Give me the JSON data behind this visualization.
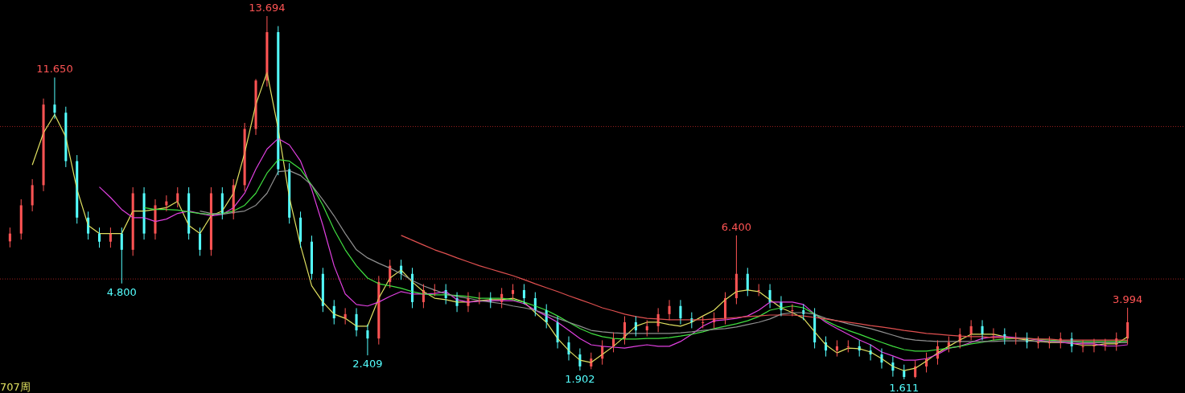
{
  "chart_data": {
    "type": "candlestick",
    "categories": [
      null,
      null,
      null,
      null,
      null,
      null,
      null,
      null,
      null,
      null,
      null,
      null,
      null,
      null,
      null,
      null,
      null,
      null,
      null,
      null,
      null,
      null,
      null,
      null,
      null,
      null,
      null,
      null,
      null,
      null,
      null,
      null,
      null,
      null,
      null,
      null,
      null,
      null,
      null,
      null,
      null,
      null,
      null,
      null,
      null,
      null,
      null,
      null,
      null,
      null,
      null,
      null,
      null,
      null,
      null,
      null,
      null,
      null,
      null,
      null,
      null,
      null,
      null,
      null,
      null,
      null,
      null,
      null,
      null,
      null,
      null,
      null,
      null,
      null,
      null,
      null,
      null,
      null,
      null,
      null,
      null,
      null,
      null,
      null,
      null,
      null,
      null,
      null,
      null,
      null,
      null,
      null,
      null,
      null,
      null,
      null,
      null,
      null,
      null,
      null,
      null
    ],
    "ohlc": [
      [
        6.2,
        6.66,
        6.0,
        6.46
      ],
      [
        6.46,
        7.6,
        6.26,
        7.4
      ],
      [
        7.4,
        8.27,
        7.2,
        8.07
      ],
      [
        8.07,
        10.95,
        7.87,
        10.75
      ],
      [
        10.75,
        11.65,
        10.28,
        10.48
      ],
      [
        10.48,
        10.68,
        8.67,
        8.87
      ],
      [
        8.87,
        9.07,
        6.79,
        6.99
      ],
      [
        6.99,
        7.19,
        6.26,
        6.46
      ],
      [
        6.46,
        6.66,
        5.99,
        6.19
      ],
      [
        6.19,
        6.66,
        5.99,
        6.46
      ],
      [
        6.46,
        6.66,
        4.8,
        5.92
      ],
      [
        5.92,
        8.0,
        5.72,
        7.8
      ],
      [
        7.8,
        8.0,
        6.26,
        6.46
      ],
      [
        6.46,
        7.6,
        6.26,
        7.4
      ],
      [
        7.4,
        7.73,
        7.2,
        7.53
      ],
      [
        7.53,
        8.0,
        7.33,
        7.8
      ],
      [
        7.8,
        8.0,
        6.26,
        6.46
      ],
      [
        6.46,
        6.66,
        5.72,
        5.92
      ],
      [
        5.92,
        8.0,
        5.72,
        7.8
      ],
      [
        7.8,
        8.0,
        6.93,
        7.13
      ],
      [
        7.13,
        8.27,
        6.93,
        8.07
      ],
      [
        8.07,
        10.14,
        7.87,
        9.94
      ],
      [
        9.94,
        11.6,
        9.74,
        11.55
      ],
      [
        11.55,
        13.694,
        11.35,
        13.16
      ],
      [
        13.16,
        13.36,
        8.4,
        8.6
      ],
      [
        8.6,
        8.8,
        6.79,
        6.99
      ],
      [
        6.99,
        7.19,
        5.99,
        6.19
      ],
      [
        6.19,
        6.39,
        4.92,
        5.12
      ],
      [
        5.12,
        5.32,
        3.85,
        4.05
      ],
      [
        4.05,
        4.25,
        3.44,
        3.64
      ],
      [
        3.64,
        3.98,
        3.44,
        3.78
      ],
      [
        3.78,
        3.98,
        3.04,
        3.24
      ],
      [
        3.24,
        3.44,
        2.409,
        2.97
      ],
      [
        2.97,
        5.05,
        2.77,
        4.85
      ],
      [
        4.85,
        5.59,
        4.65,
        5.39
      ],
      [
        5.39,
        5.59,
        4.92,
        5.12
      ],
      [
        5.12,
        5.32,
        3.98,
        4.18
      ],
      [
        4.18,
        4.78,
        3.98,
        4.58
      ],
      [
        4.58,
        4.78,
        4.38,
        4.58
      ],
      [
        4.58,
        4.78,
        4.11,
        4.31
      ],
      [
        4.31,
        4.51,
        3.85,
        4.05
      ],
      [
        4.05,
        4.51,
        3.85,
        4.31
      ],
      [
        4.31,
        4.51,
        4.11,
        4.31
      ],
      [
        4.31,
        4.51,
        3.98,
        4.18
      ],
      [
        4.18,
        4.65,
        3.98,
        4.45
      ],
      [
        4.45,
        4.78,
        4.25,
        4.58
      ],
      [
        4.58,
        4.78,
        4.11,
        4.31
      ],
      [
        4.31,
        4.51,
        3.71,
        3.91
      ],
      [
        3.91,
        4.11,
        3.31,
        3.51
      ],
      [
        3.51,
        3.71,
        2.64,
        2.84
      ],
      [
        2.84,
        3.04,
        2.24,
        2.44
      ],
      [
        2.44,
        2.64,
        1.902,
        2.04
      ],
      [
        2.04,
        2.5,
        1.95,
        2.3
      ],
      [
        2.3,
        2.91,
        2.1,
        2.71
      ],
      [
        2.71,
        3.17,
        2.51,
        2.97
      ],
      [
        2.97,
        3.71,
        2.77,
        3.51
      ],
      [
        3.51,
        3.71,
        3.04,
        3.24
      ],
      [
        3.24,
        3.58,
        3.04,
        3.38
      ],
      [
        3.38,
        3.98,
        3.18,
        3.78
      ],
      [
        3.78,
        4.25,
        3.58,
        4.05
      ],
      [
        4.05,
        4.25,
        3.44,
        3.64
      ],
      [
        3.64,
        3.84,
        3.31,
        3.51
      ],
      [
        3.51,
        3.71,
        3.31,
        3.51
      ],
      [
        3.51,
        3.84,
        3.31,
        3.64
      ],
      [
        3.64,
        4.51,
        3.44,
        4.31
      ],
      [
        4.31,
        6.4,
        4.11,
        5.12
      ],
      [
        5.12,
        5.32,
        4.38,
        4.58
      ],
      [
        4.58,
        4.78,
        4.38,
        4.58
      ],
      [
        4.58,
        4.78,
        3.98,
        4.18
      ],
      [
        4.18,
        4.38,
        3.71,
        3.91
      ],
      [
        3.91,
        4.11,
        3.71,
        3.91
      ],
      [
        3.91,
        4.11,
        3.58,
        3.78
      ],
      [
        3.78,
        3.98,
        2.64,
        2.84
      ],
      [
        2.84,
        3.04,
        2.37,
        2.57
      ],
      [
        2.57,
        2.91,
        2.37,
        2.71
      ],
      [
        2.71,
        2.91,
        2.51,
        2.71
      ],
      [
        2.71,
        2.91,
        2.37,
        2.57
      ],
      [
        2.57,
        2.77,
        2.24,
        2.44
      ],
      [
        2.44,
        2.64,
        1.97,
        2.17
      ],
      [
        2.17,
        2.37,
        1.7,
        1.9
      ],
      [
        1.9,
        2.1,
        1.611,
        1.69
      ],
      [
        1.69,
        2.24,
        1.65,
        2.04
      ],
      [
        2.04,
        2.5,
        1.84,
        2.3
      ],
      [
        2.3,
        2.91,
        2.1,
        2.71
      ],
      [
        2.71,
        3.04,
        2.51,
        2.84
      ],
      [
        2.84,
        3.31,
        2.64,
        3.11
      ],
      [
        3.11,
        3.58,
        2.91,
        3.38
      ],
      [
        3.38,
        3.58,
        2.91,
        3.11
      ],
      [
        3.11,
        3.31,
        2.91,
        3.11
      ],
      [
        3.11,
        3.31,
        2.77,
        2.97
      ],
      [
        2.97,
        3.17,
        2.77,
        2.97
      ],
      [
        2.97,
        3.17,
        2.64,
        2.84
      ],
      [
        2.84,
        3.04,
        2.64,
        2.84
      ],
      [
        2.84,
        3.04,
        2.64,
        2.84
      ],
      [
        2.84,
        3.17,
        2.64,
        2.97
      ],
      [
        2.97,
        3.17,
        2.51,
        2.71
      ],
      [
        2.71,
        2.91,
        2.51,
        2.71
      ],
      [
        2.71,
        2.96,
        2.51,
        2.76
      ],
      [
        2.76,
        2.96,
        2.56,
        2.76
      ],
      [
        2.76,
        3.17,
        2.56,
        2.97
      ],
      [
        2.97,
        3.994,
        2.77,
        3.51
      ]
    ],
    "colors": [
      "#ff5454",
      "#ff5454",
      "#ff5454",
      "#ff5454",
      "#54ffff",
      "#54ffff",
      "#54ffff",
      "#54ffff",
      "#54ffff",
      "#ff5454",
      "#54ffff",
      "#ff5454",
      "#54ffff",
      "#ff5454",
      "#ff5454",
      "#ff5454",
      "#54ffff",
      "#54ffff",
      "#ff5454",
      "#54ffff",
      "#ff5454",
      "#ff5454",
      "#ff5454",
      "#ff5454",
      "#54ffff",
      "#54ffff",
      "#54ffff",
      "#54ffff",
      "#54ffff",
      "#54ffff",
      "#ff5454",
      "#54ffff",
      "#54ffff",
      "#ff5454",
      "#ff5454",
      "#54ffff",
      "#54ffff",
      "#ff5454",
      "#ff5454",
      "#54ffff",
      "#54ffff",
      "#ff5454",
      "#ff5454",
      "#54ffff",
      "#ff5454",
      "#ff5454",
      "#54ffff",
      "#54ffff",
      "#54ffff",
      "#54ffff",
      "#54ffff",
      "#54ffff",
      "#ff5454",
      "#ff5454",
      "#ff5454",
      "#ff5454",
      "#54ffff",
      "#ff5454",
      "#ff5454",
      "#ff5454",
      "#54ffff",
      "#54ffff",
      "#ff5454",
      "#ff5454",
      "#ff5454",
      "#ff5454",
      "#54ffff",
      "#ff5454",
      "#54ffff",
      "#54ffff",
      "#ff5454",
      "#54ffff",
      "#54ffff",
      "#54ffff",
      "#ff5454",
      "#ff5454",
      "#54ffff",
      "#54ffff",
      "#54ffff",
      "#54ffff",
      "#54ffff",
      "#ff5454",
      "#ff5454",
      "#ff5454",
      "#ff5454",
      "#ff5454",
      "#ff5454",
      "#54ffff",
      "#ff5454",
      "#54ffff",
      "#ff5454",
      "#54ffff",
      "#ff5454",
      "#ff5454",
      "#ff5454",
      "#54ffff",
      "#ff5454",
      "#ff5454",
      "#ff5454",
      "#ff5454",
      "#ff5454"
    ],
    "series": [
      {
        "type": "line",
        "color": "#e0e060",
        "values": [
          null,
          null,
          8.74,
          9.81,
          10.42,
          9.67,
          7.93,
          6.73,
          6.46,
          6.46,
          6.46,
          7.21,
          7.21,
          7.26,
          7.32,
          7.53,
          6.73,
          6.46,
          7.05,
          7.21,
          7.8,
          9.14,
          10.75,
          11.82,
          9.94,
          7.66,
          6.06,
          4.72,
          4.18,
          3.78,
          3.64,
          3.38,
          3.38,
          4.31,
          4.98,
          5.25,
          4.85,
          4.53,
          4.31,
          4.26,
          4.18,
          4.18,
          4.23,
          4.26,
          4.26,
          4.31,
          4.18,
          3.83,
          3.51,
          2.97,
          2.57,
          2.25,
          2.17,
          2.44,
          2.71,
          3.03,
          3.38,
          3.51,
          3.51,
          3.43,
          3.38,
          3.51,
          3.72,
          3.91,
          4.26,
          4.53,
          4.58,
          4.53,
          4.26,
          3.99,
          3.83,
          3.64,
          3.19,
          2.76,
          2.49,
          2.65,
          2.63,
          2.52,
          2.3,
          2.04,
          1.9,
          1.98,
          2.22,
          2.49,
          2.71,
          2.92,
          3.11,
          3.11,
          3.11,
          3.03,
          2.97,
          2.92,
          2.87,
          2.84,
          2.84,
          2.81,
          2.74,
          2.74,
          2.79,
          2.79,
          3.03
        ]
      },
      {
        "type": "line",
        "color": "#e040e0",
        "values": [
          null,
          null,
          null,
          null,
          null,
          null,
          null,
          null,
          8.01,
          7.66,
          7.26,
          6.99,
          6.99,
          6.86,
          6.94,
          7.13,
          7.21,
          7.13,
          7.05,
          7.1,
          7.32,
          7.8,
          8.6,
          9.27,
          9.62,
          9.41,
          8.87,
          7.93,
          6.73,
          5.39,
          4.45,
          4.1,
          4.05,
          4.18,
          4.37,
          4.53,
          4.45,
          4.45,
          4.47,
          4.53,
          4.26,
          4.18,
          4.21,
          4.23,
          4.23,
          4.23,
          4.13,
          3.91,
          3.72,
          3.51,
          3.24,
          2.97,
          2.76,
          2.71,
          2.68,
          2.65,
          2.71,
          2.76,
          2.71,
          2.71,
          2.87,
          3.11,
          3.38,
          3.56,
          3.59,
          3.64,
          3.72,
          3.91,
          4.18,
          4.18,
          4.18,
          4.1,
          3.78,
          3.51,
          3.3,
          3.11,
          2.92,
          2.76,
          2.52,
          2.39,
          2.25,
          2.25,
          2.3,
          2.44,
          2.65,
          2.71,
          2.84,
          2.97,
          3.03,
          3.03,
          3.0,
          2.97,
          2.92,
          2.87,
          2.84,
          2.81,
          2.79,
          2.79,
          2.72,
          2.72,
          2.76
        ]
      },
      {
        "type": "line",
        "color": "#40e040",
        "values": [
          null,
          null,
          null,
          null,
          null,
          null,
          null,
          null,
          null,
          null,
          null,
          null,
          7.32,
          7.26,
          7.26,
          7.24,
          7.18,
          7.13,
          7.1,
          7.13,
          7.21,
          7.4,
          7.8,
          8.47,
          8.92,
          8.87,
          8.6,
          8.07,
          7.4,
          6.59,
          5.92,
          5.39,
          4.98,
          4.79,
          4.72,
          4.64,
          4.53,
          4.45,
          4.42,
          4.42,
          4.4,
          4.37,
          4.31,
          4.31,
          4.31,
          4.26,
          4.18,
          4.05,
          3.91,
          3.72,
          3.51,
          3.3,
          3.14,
          3.03,
          2.97,
          2.95,
          2.95,
          2.97,
          2.97,
          3.0,
          3.05,
          3.11,
          3.19,
          3.3,
          3.38,
          3.46,
          3.56,
          3.7,
          3.91,
          3.99,
          4.05,
          3.99,
          3.78,
          3.56,
          3.38,
          3.24,
          3.11,
          2.97,
          2.84,
          2.71,
          2.6,
          2.55,
          2.55,
          2.6,
          2.65,
          2.71,
          2.79,
          2.84,
          2.92,
          2.95,
          2.97,
          2.97,
          2.95,
          2.92,
          2.89,
          2.87,
          2.87,
          2.87,
          2.87,
          2.87,
          2.88
        ]
      },
      {
        "type": "line",
        "color": "#909090",
        "values": [
          null,
          null,
          null,
          null,
          null,
          null,
          null,
          null,
          null,
          null,
          null,
          null,
          null,
          null,
          null,
          null,
          null,
          7.21,
          7.13,
          7.1,
          7.16,
          7.21,
          7.4,
          7.8,
          8.52,
          8.55,
          8.39,
          8.07,
          7.58,
          7.05,
          6.46,
          5.92,
          5.65,
          5.47,
          5.31,
          5.12,
          4.9,
          4.72,
          4.58,
          4.45,
          4.37,
          4.31,
          4.23,
          4.18,
          4.13,
          4.05,
          3.99,
          3.91,
          3.78,
          3.64,
          3.51,
          3.38,
          3.24,
          3.19,
          3.16,
          3.14,
          3.14,
          3.14,
          3.14,
          3.14,
          3.16,
          3.19,
          3.24,
          3.27,
          3.3,
          3.35,
          3.43,
          3.51,
          3.62,
          3.78,
          3.83,
          3.83,
          3.78,
          3.64,
          3.56,
          3.46,
          3.38,
          3.3,
          3.19,
          3.08,
          2.97,
          2.92,
          2.89,
          2.87,
          2.87,
          2.87,
          2.87,
          2.87,
          2.87,
          2.89,
          2.89,
          2.89,
          2.87,
          2.87,
          2.87,
          2.87,
          2.83,
          2.83,
          2.83,
          2.83,
          2.83
        ]
      },
      {
        "type": "line",
        "color": "#e05050",
        "values": [
          null,
          null,
          null,
          null,
          null,
          null,
          null,
          null,
          null,
          null,
          null,
          null,
          null,
          null,
          null,
          null,
          null,
          null,
          null,
          null,
          null,
          null,
          null,
          null,
          null,
          null,
          null,
          null,
          null,
          null,
          null,
          null,
          null,
          null,
          null,
          6.4,
          6.24,
          6.08,
          5.92,
          5.79,
          5.65,
          5.52,
          5.39,
          5.28,
          5.17,
          5.06,
          4.93,
          4.79,
          4.66,
          4.53,
          4.39,
          4.26,
          4.13,
          3.99,
          3.89,
          3.78,
          3.7,
          3.64,
          3.62,
          3.59,
          3.59,
          3.59,
          3.59,
          3.62,
          3.64,
          3.67,
          3.7,
          3.72,
          3.75,
          3.75,
          3.75,
          3.72,
          3.67,
          3.62,
          3.56,
          3.51,
          3.46,
          3.4,
          3.35,
          3.3,
          3.24,
          3.19,
          3.14,
          3.11,
          3.08,
          3.05,
          3.03,
          3.03,
          3.0,
          3.0,
          2.97,
          2.97,
          2.95,
          2.95,
          2.92,
          2.92,
          2.92,
          2.92,
          2.92,
          2.92,
          2.92
        ]
      }
    ],
    "ref_lines": [
      {
        "axis": "y",
        "value": 10.02,
        "color": "#a02020",
        "line_style": "dotted"
      },
      {
        "axis": "y",
        "value": 4.95,
        "color": "#a02020",
        "line_style": "dotted"
      }
    ],
    "annotations": [
      {
        "text": "11.650",
        "y": 11.65
      },
      {
        "text": "13.694",
        "y": 13.694
      },
      {
        "text": "4.800",
        "y": 4.8
      },
      {
        "text": "2.409",
        "y": 2.409
      },
      {
        "text": "1.902",
        "y": 1.902
      },
      {
        "text": "6.400",
        "y": 6.4
      },
      {
        "text": "1.611",
        "y": 1.611
      },
      {
        "text": "3.994",
        "y": 3.994
      },
      "707周"
    ]
  }
}
